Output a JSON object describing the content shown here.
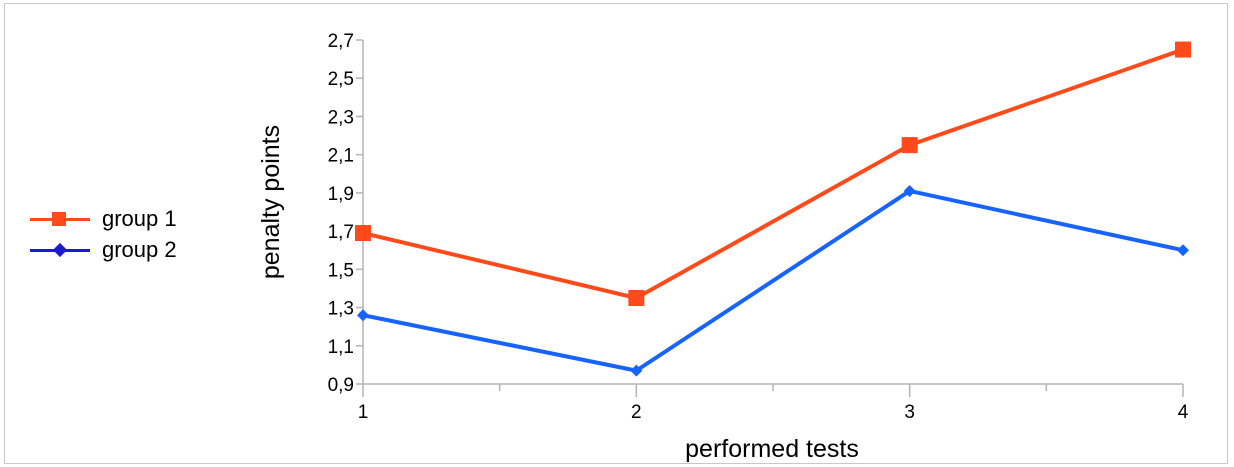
{
  "chart_data": {
    "type": "line",
    "title": "",
    "xlabel": "performed tests",
    "ylabel": "penalty points",
    "categories": [
      "1",
      "2",
      "3",
      "4"
    ],
    "ylim": [
      0.9,
      2.7
    ],
    "yticks": [
      "0,9",
      "1,1",
      "1,3",
      "1,5",
      "1,7",
      "1,9",
      "2,1",
      "2,3",
      "2,5",
      "2,7"
    ],
    "ytick_values": [
      0.9,
      1.1,
      1.3,
      1.5,
      1.7,
      1.9,
      2.1,
      2.3,
      2.5,
      2.7
    ],
    "grid": false,
    "legend_position": "left",
    "series": [
      {
        "name": "group 1",
        "color": "#ff4b1b",
        "marker": "square",
        "values": [
          1.69,
          1.35,
          2.15,
          2.65
        ]
      },
      {
        "name": "group 2",
        "color": "#1763ff",
        "marker": "diamond",
        "values": [
          1.26,
          0.97,
          1.91,
          1.6
        ]
      }
    ]
  }
}
